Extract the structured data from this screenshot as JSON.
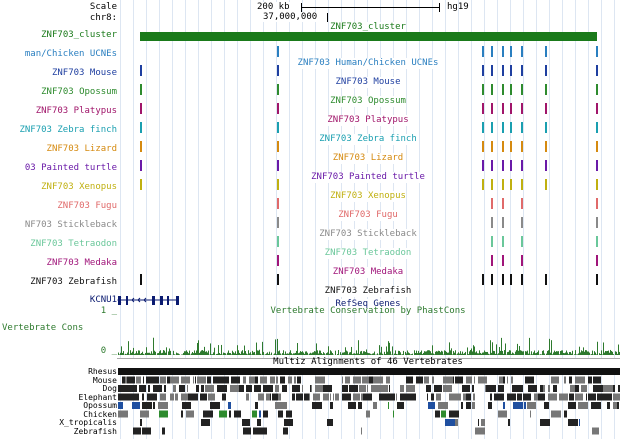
{
  "ruler": {
    "scale_label": "Scale",
    "chrom_label": "chr8:",
    "scale_bar_text": "200 kb",
    "assembly": "hg19",
    "position_text": "37,000,000"
  },
  "tracks": [
    {
      "label": "ZNF703_cluster",
      "title": "ZNF703_cluster",
      "color": "#1a7a1a",
      "type": "bar"
    },
    {
      "label": "man/Chicken UCNEs",
      "title": "ZNF703 Human/Chicken UCNEs",
      "color": "#2a7fc0",
      "type": "ticks",
      "x": [
        277,
        482,
        491,
        502,
        510,
        521,
        545,
        596
      ]
    },
    {
      "label": "ZNF703 Mouse",
      "title": "ZNF703 Mouse",
      "color": "#1f3fa0",
      "type": "ticks",
      "x": [
        140,
        277,
        482,
        491,
        502,
        510,
        521,
        545,
        596
      ]
    },
    {
      "label": "ZNF703 Opossum",
      "title": "ZNF703 Opossum",
      "color": "#2e8b2e",
      "type": "ticks",
      "x": [
        140,
        277,
        482,
        491,
        502,
        510,
        521,
        545,
        596
      ]
    },
    {
      "label": "ZNF703 Platypus",
      "title": "ZNF703 Platypus",
      "color": "#a0156a",
      "type": "ticks",
      "x": [
        140,
        277,
        482,
        491,
        502,
        510,
        521,
        545,
        596
      ]
    },
    {
      "label": "ZNF703 Zebra finch",
      "title": "ZNF703 Zebra finch",
      "color": "#1a9fb0",
      "type": "ticks",
      "x": [
        140,
        277,
        482,
        491,
        502,
        510,
        521,
        545,
        596
      ]
    },
    {
      "label": "ZNF703 Lizard",
      "title": "ZNF703 Lizard",
      "color": "#d58a10",
      "type": "ticks",
      "x": [
        140,
        277,
        482,
        491,
        502,
        510,
        521,
        545,
        596
      ]
    },
    {
      "label": "03 Painted turtle",
      "title": "ZNF703 Painted turtle",
      "color": "#6a1aa8",
      "type": "ticks",
      "x": [
        140,
        277,
        482,
        491,
        502,
        510,
        521,
        545,
        596
      ]
    },
    {
      "label": "ZNF703 Xenopus",
      "title": "ZNF703 Xenopus",
      "color": "#c0b010",
      "type": "ticks",
      "x": [
        140,
        277,
        482,
        491,
        502,
        510,
        521,
        545,
        596
      ]
    },
    {
      "label": "ZNF703 Fugu",
      "title": "ZNF703 Fugu",
      "color": "#e06a6a",
      "type": "ticks",
      "x": [
        277,
        491,
        502,
        521,
        596
      ]
    },
    {
      "label": "NF703 Stickleback",
      "title": "ZNF703 Stickleback",
      "color": "#8a8a8a",
      "type": "ticks",
      "x": [
        277,
        491,
        502,
        521,
        596
      ]
    },
    {
      "label": "ZNF703 Tetraodon",
      "title": "ZNF703 Tetraodon",
      "color": "#6ac79a",
      "type": "ticks",
      "x": [
        277,
        491,
        502,
        521,
        596
      ]
    },
    {
      "label": "ZNF703 Medaka",
      "title": "ZNF703 Medaka",
      "color": "#a0157a",
      "type": "ticks",
      "x": [
        277,
        491,
        502,
        521,
        596
      ]
    },
    {
      "label": "ZNF703 Zebrafish",
      "title": "ZNF703 Zebrafish",
      "color": "#111111",
      "type": "ticks",
      "x": [
        140,
        277,
        482,
        491,
        502,
        510,
        521,
        545,
        596
      ]
    },
    {
      "label": "",
      "title": "RefSeq Genes",
      "color": "#0a1a70",
      "type": "title"
    }
  ],
  "gene": {
    "label": "KCNU1",
    "color": "#0a1a70"
  },
  "conservation": {
    "top_value": "1",
    "bottom_value": "0",
    "label": "Vertebrate Cons",
    "title": "Vertebrate Conservation by PhastCons",
    "color": "#2e7a2e"
  },
  "multiz": {
    "title": "Multiz Alignments of 46 Vertebrates",
    "species": [
      "Rhesus",
      "Mouse",
      "Dog",
      "Elephant",
      "Opossum",
      "Chicken",
      "X_tropicalis",
      "Zebrafish"
    ]
  }
}
